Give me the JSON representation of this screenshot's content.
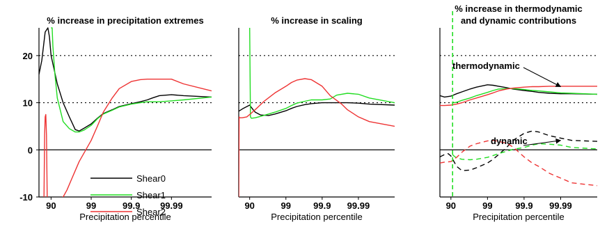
{
  "chart_data": [
    {
      "type": "line",
      "title": "% increase in precipitation extremes",
      "xlabel": "Precipitation percentile",
      "ylabel": "",
      "x_scale": "log-exceedance",
      "xlim": [
        80,
        99.999
      ],
      "ylim": [
        -10,
        25
      ],
      "x_ticks": [
        90,
        99,
        99.9,
        99.99
      ],
      "x_tick_labels": [
        "90",
        "99",
        "99.9",
        "99.99"
      ],
      "y_ticks": [
        -10,
        0,
        10,
        20
      ],
      "y_tick_labels": [
        "-10",
        "0",
        "10",
        "20"
      ],
      "reference_lines": [
        0,
        10,
        20
      ],
      "legend": {
        "placement": "bottom-center",
        "entries": [
          {
            "label": "Shear0",
            "color": "#000000"
          },
          {
            "label": "Shear1",
            "color": "#22dd22"
          },
          {
            "label": "Shear2",
            "color": "#ee3333"
          }
        ]
      },
      "series": [
        {
          "name": "Shear0",
          "color": "#000000",
          "dash": "solid",
          "x": [
            80,
            83,
            86,
            88,
            89,
            90,
            93,
            95,
            96.5,
            97.5,
            98,
            98.5,
            99,
            99.3,
            99.5,
            99.7,
            99.8,
            99.9,
            99.94,
            99.96,
            99.97,
            99.98,
            99.99,
            99.995,
            99.999
          ],
          "y": [
            16,
            19,
            25,
            26,
            24,
            20,
            14,
            10,
            7,
            4.3,
            4.0,
            4.6,
            5.5,
            6.7,
            7.7,
            8.5,
            9.2,
            9.8,
            10.2,
            10.6,
            11.0,
            11.5,
            11.7,
            11.5,
            11.2
          ]
        },
        {
          "name": "Shear1",
          "color": "#22dd22",
          "dash": "solid",
          "x": [
            90,
            90.6,
            91,
            92,
            93,
            95,
            96.5,
            97.5,
            98,
            98.5,
            99,
            99.3,
            99.5,
            99.7,
            99.8,
            99.9,
            99.94,
            99.96,
            99.98,
            99.99,
            99.995,
            99.999
          ],
          "y": [
            26,
            26,
            22,
            16,
            11,
            6,
            4.5,
            3.8,
            3.8,
            4.2,
            5.2,
            6.6,
            7.6,
            8.4,
            9.1,
            9.7,
            10.0,
            10.2,
            10.2,
            10.4,
            10.6,
            11.2
          ]
        },
        {
          "name": "Shear2",
          "color": "#ee3333",
          "dash": "solid",
          "x": [
            85,
            85.5,
            86,
            86.5,
            87,
            87.5,
            88,
            89,
            90,
            92,
            94,
            95,
            96,
            97,
            98,
            99,
            99.3,
            99.5,
            99.7,
            99.8,
            99.9,
            99.94,
            99.96,
            99.97,
            99.98,
            99.99,
            99.995,
            99.999
          ],
          "y": [
            -10,
            3,
            7,
            7.5,
            3,
            -10,
            -13,
            -13,
            -13,
            -12,
            -11,
            -10,
            -8.5,
            -6,
            -2.5,
            2,
            5,
            8,
            11,
            13,
            14.5,
            14.9,
            15,
            15,
            15,
            15,
            14,
            12.5
          ]
        }
      ]
    },
    {
      "type": "line",
      "title": "% increase in scaling",
      "xlabel": "Precipitation percentile",
      "ylabel": "",
      "x_scale": "log-exceedance",
      "xlim": [
        80,
        99.999
      ],
      "ylim": [
        -10,
        25
      ],
      "x_ticks": [
        90,
        99,
        99.9,
        99.99
      ],
      "x_tick_labels": [
        "90",
        "99",
        "99.9",
        "99.99"
      ],
      "reference_lines": [
        0,
        10,
        20
      ],
      "series": [
        {
          "name": "Shear0",
          "color": "#000000",
          "dash": "solid",
          "x": [
            80,
            85,
            90,
            92,
            93,
            95,
            97,
            98,
            99,
            99.3,
            99.5,
            99.7,
            99.8,
            99.9,
            99.94,
            99.96,
            99.98,
            99.99,
            99.995,
            99.999
          ],
          "y": [
            8.2,
            8.8,
            9.5,
            8.5,
            8.0,
            7.4,
            7.3,
            7.6,
            8.3,
            8.8,
            9.2,
            9.6,
            9.8,
            10.0,
            10.0,
            10.0,
            10.0,
            9.9,
            9.7,
            9.5
          ]
        },
        {
          "name": "Shear1",
          "color": "#22dd22",
          "dash": "solid",
          "x": [
            90,
            90.5,
            91,
            93,
            95,
            97,
            98,
            99,
            99.3,
            99.5,
            99.7,
            99.8,
            99.9,
            99.94,
            99.96,
            99.98,
            99.99,
            99.995,
            99.999
          ],
          "y": [
            26,
            7.0,
            6.7,
            6.8,
            7.1,
            7.6,
            8.0,
            8.8,
            9.4,
            9.9,
            10.3,
            10.6,
            10.6,
            10.8,
            11.6,
            12.0,
            11.8,
            11.0,
            10.0
          ]
        },
        {
          "name": "Shear2",
          "color": "#ee3333",
          "dash": "solid",
          "x": [
            80,
            80.5,
            81,
            84,
            88,
            91,
            94,
            96,
            98,
            99,
            99.3,
            99.5,
            99.7,
            99.8,
            99.9,
            99.94,
            99.96,
            99.97,
            99.98,
            99.99,
            99.995,
            99.999
          ],
          "y": [
            -10,
            7.0,
            6.8,
            6.8,
            7.0,
            7.8,
            9.0,
            10.3,
            12.1,
            13.5,
            14.3,
            14.8,
            15.1,
            14.9,
            13.5,
            11.5,
            10.5,
            9.8,
            8.5,
            7.0,
            6.0,
            5.0
          ]
        }
      ]
    },
    {
      "type": "line",
      "title": "% increase in thermodynamic",
      "subtitle": "and dynamic contributions",
      "xlabel": "Precipitation percentile",
      "ylabel": "",
      "x_scale": "log-exceedance",
      "xlim": [
        80,
        99.999
      ],
      "ylim": [
        -10,
        25
      ],
      "x_ticks": [
        90,
        99,
        99.9,
        99.99
      ],
      "x_tick_labels": [
        "90",
        "99",
        "99.9",
        "99.99"
      ],
      "reference_lines": [
        0,
        10,
        20
      ],
      "vertical_marker": {
        "x": 91,
        "color": "#22dd22",
        "dash": "dashed"
      },
      "annotations": [
        {
          "text": "thermodynamic",
          "target_x": 99.99,
          "target_y": 13.4
        },
        {
          "text": "dynamic",
          "target_x": 99.99,
          "target_y": 2.0
        }
      ],
      "series": [
        {
          "name": "Shear0",
          "component": "thermodynamic",
          "color": "#000000",
          "dash": "solid",
          "x": [
            80,
            85,
            90,
            93,
            95,
            97,
            98,
            99,
            99.3,
            99.5,
            99.7,
            99.8,
            99.9,
            99.94,
            99.96,
            99.98,
            99.99,
            99.995,
            99.999
          ],
          "y": [
            11.5,
            11.2,
            11.4,
            11.9,
            12.3,
            12.9,
            13.3,
            13.8,
            13.7,
            13.5,
            13.2,
            12.9,
            12.6,
            12.4,
            12.2,
            12.0,
            11.9,
            11.9,
            11.8
          ]
        },
        {
          "name": "Shear1",
          "component": "thermodynamic",
          "color": "#22dd22",
          "dash": "solid",
          "x": [
            91,
            92,
            93,
            95,
            97,
            98,
            99,
            99.3,
            99.5,
            99.7,
            99.8,
            99.9,
            99.94,
            99.96,
            99.98,
            99.99,
            99.995,
            99.999
          ],
          "y": [
            10.2,
            10.0,
            10.1,
            10.5,
            11.0,
            11.5,
            12.2,
            12.6,
            12.9,
            13.0,
            13.0,
            12.8,
            12.6,
            12.5,
            12.3,
            12.1,
            12.0,
            11.8
          ]
        },
        {
          "name": "Shear2",
          "component": "thermodynamic",
          "color": "#ee3333",
          "dash": "solid",
          "x": [
            80,
            85,
            90,
            93,
            95,
            97,
            98,
            99,
            99.3,
            99.5,
            99.7,
            99.8,
            99.9,
            99.94,
            99.96,
            99.98,
            99.99,
            99.995,
            99.999
          ],
          "y": [
            9.4,
            9.4,
            9.5,
            9.7,
            10.0,
            10.6,
            11.0,
            11.7,
            12.1,
            12.5,
            12.9,
            13.1,
            13.3,
            13.4,
            13.4,
            13.5,
            13.5,
            13.5,
            13.5
          ]
        },
        {
          "name": "Shear0",
          "component": "dynamic",
          "color": "#000000",
          "dash": "dashed",
          "x": [
            80,
            85,
            88,
            90,
            93,
            95,
            97,
            98,
            99,
            99.3,
            99.5,
            99.7,
            99.8,
            99.9,
            99.94,
            99.96,
            99.98,
            99.99,
            99.995,
            99.999
          ],
          "y": [
            -1.5,
            -1.0,
            -0.8,
            -1.3,
            -3.5,
            -4.4,
            -4.3,
            -3.8,
            -2.8,
            -2.0,
            -1.0,
            0.5,
            2.0,
            3.5,
            4.0,
            3.8,
            3.0,
            2.5,
            2.0,
            1.8
          ]
        },
        {
          "name": "Shear1",
          "component": "dynamic",
          "color": "#22dd22",
          "dash": "dashed",
          "x": [
            91,
            92,
            93,
            95,
            97,
            98,
            99,
            99.3,
            99.5,
            99.7,
            99.8,
            99.9,
            99.94,
            99.96,
            99.98,
            99.99,
            99.995,
            99.999
          ],
          "y": [
            -1.0,
            -1.4,
            -1.7,
            -2.0,
            -2.1,
            -2.0,
            -1.6,
            -1.2,
            -0.8,
            -0.3,
            0.1,
            0.5,
            1.0,
            1.3,
            1.2,
            1.0,
            0.5,
            0.2
          ]
        },
        {
          "name": "Shear2",
          "component": "dynamic",
          "color": "#ee3333",
          "dash": "dashed",
          "x": [
            80,
            85,
            90,
            93,
            95,
            97,
            98,
            99,
            99.3,
            99.5,
            99.7,
            99.8,
            99.9,
            99.94,
            99.96,
            99.98,
            99.99,
            99.995,
            99.999
          ],
          "y": [
            -2.8,
            -2.6,
            -2.5,
            -1.6,
            -0.5,
            0.8,
            1.3,
            1.9,
            2.0,
            1.8,
            1.4,
            0.6,
            -1.5,
            -2.8,
            -3.5,
            -5.0,
            -6.0,
            -7.0,
            -7.6
          ]
        }
      ]
    }
  ]
}
